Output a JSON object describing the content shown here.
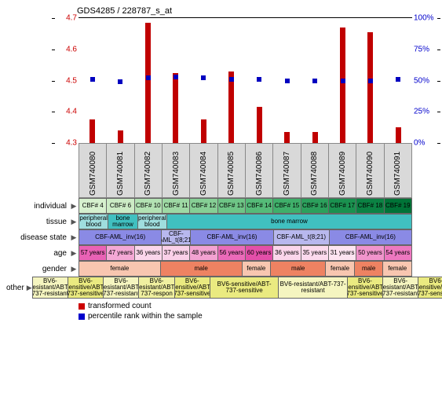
{
  "title": "GDS4285 / 228787_s_at",
  "y_left": {
    "min": 4.3,
    "max": 4.7,
    "ticks": [
      4.3,
      4.4,
      4.5,
      4.6,
      4.7
    ],
    "color": "#c00000"
  },
  "y_right": {
    "min": 0,
    "max": 100,
    "ticks": [
      0,
      25,
      50,
      75,
      100
    ],
    "suffix": "%",
    "color": "#0000c0"
  },
  "samples": [
    "GSM740080",
    "GSM740081",
    "GSM740082",
    "GSM740083",
    "GSM740084",
    "GSM740085",
    "GSM740086",
    "GSM740087",
    "GSM740088",
    "GSM740089",
    "GSM740090",
    "GSM740091"
  ],
  "bars": [
    4.375,
    4.34,
    4.685,
    4.525,
    4.375,
    4.53,
    4.415,
    4.335,
    4.335,
    4.67,
    4.655,
    4.35
  ],
  "points": [
    51,
    49,
    52,
    53,
    52,
    51,
    51,
    50,
    50,
    50,
    50,
    51
  ],
  "bar_color": "#c00000",
  "point_color": "#0000c0",
  "meta_rows": [
    {
      "label": "individual",
      "cells": [
        {
          "t": "CBF# 4",
          "w": 1,
          "c": "#d6f0ce"
        },
        {
          "t": "CBF# 6",
          "w": 1,
          "c": "#ccebc5"
        },
        {
          "t": "CBF# 10",
          "w": 1,
          "c": "#b3e2b3"
        },
        {
          "t": "CBF# 11",
          "w": 1,
          "c": "#9ed9a4"
        },
        {
          "t": "CBF# 12",
          "w": 1,
          "c": "#86cf95"
        },
        {
          "t": "CBF# 13",
          "w": 1,
          "c": "#6ec586"
        },
        {
          "t": "CBF# 14",
          "w": 1,
          "c": "#55bb78"
        },
        {
          "t": "CBF# 15",
          "w": 1,
          "c": "#3faf6a"
        },
        {
          "t": "CBF# 16",
          "w": 1,
          "c": "#2ca05c"
        },
        {
          "t": "CBF# 17",
          "w": 1,
          "c": "#1a914f"
        },
        {
          "t": "CBF# 18",
          "w": 1,
          "c": "#0b8243"
        },
        {
          "t": "CBF# 19",
          "w": 1,
          "c": "#007337"
        }
      ]
    },
    {
      "label": "tissue",
      "cells": [
        {
          "t": "peripheral blood",
          "w": 1,
          "c": "#9fdede"
        },
        {
          "t": "bone marrow",
          "w": 1,
          "c": "#40c0c0"
        },
        {
          "t": "peripheral blood",
          "w": 1,
          "c": "#9fdede"
        },
        {
          "t": "bone marrow",
          "w": 9,
          "c": "#40c0c0"
        }
      ]
    },
    {
      "label": "disease state",
      "cells": [
        {
          "t": "CBF-AML_inv(16)",
          "w": 3,
          "c": "#8a8ae5"
        },
        {
          "t": "CBF-AML_t(8;21)",
          "w": 1,
          "c": "#b8b8ee"
        },
        {
          "t": "CBF-AML_inv(16)",
          "w": 3,
          "c": "#8a8ae5"
        },
        {
          "t": "CBF-AML_t(8;21)",
          "w": 2,
          "c": "#b8b8ee"
        },
        {
          "t": "CBF-AML_inv(16)",
          "w": 3,
          "c": "#8a8ae5"
        }
      ]
    },
    {
      "label": "age",
      "cells": [
        {
          "t": "57 years",
          "w": 1,
          "c": "#e962b5"
        },
        {
          "t": "47 years",
          "w": 1,
          "c": "#f4a8d5"
        },
        {
          "t": "36 years",
          "w": 1,
          "c": "#fbd6eb"
        },
        {
          "t": "37 years",
          "w": 1,
          "c": "#fad0e8"
        },
        {
          "t": "48 years",
          "w": 1,
          "c": "#f3a2d2"
        },
        {
          "t": "56 years",
          "w": 1,
          "c": "#eb6ab9"
        },
        {
          "t": "60 years",
          "w": 1,
          "c": "#e34fa9"
        },
        {
          "t": "36 years",
          "w": 1,
          "c": "#fbd6eb"
        },
        {
          "t": "35 years",
          "w": 1,
          "c": "#fcdaed"
        },
        {
          "t": "31 years",
          "w": 1,
          "c": "#fde4f1"
        },
        {
          "t": "50 years",
          "w": 1,
          "c": "#f194cc"
        },
        {
          "t": "54 years",
          "w": 1,
          "c": "#ed78c0"
        }
      ]
    },
    {
      "label": "gender",
      "cells": [
        {
          "t": "female",
          "w": 3,
          "c": "#f8c6b0"
        },
        {
          "t": "male",
          "w": 3,
          "c": "#ee8262"
        },
        {
          "t": "female",
          "w": 1,
          "c": "#f8c6b0"
        },
        {
          "t": "male",
          "w": 2,
          "c": "#ee8262"
        },
        {
          "t": "female",
          "w": 1,
          "c": "#f8c6b0"
        },
        {
          "t": "male",
          "w": 1,
          "c": "#ee8262"
        },
        {
          "t": "female",
          "w": 1,
          "c": "#f8c6b0"
        }
      ]
    },
    {
      "label": "other",
      "cells": [
        {
          "t": "BV6-resistant/ABT-737-resistant",
          "w": 1,
          "c": "#f5f5c0"
        },
        {
          "t": "BV6-sensitive/ABT-737-sensitive",
          "w": 1,
          "c": "#eaea80"
        },
        {
          "t": "BV6-resistant/ABT-737-resistant",
          "w": 1,
          "c": "#f5f5c0"
        },
        {
          "t": "BV6-resistant/ABT-737-respon",
          "w": 1,
          "c": "#f0f0a0"
        },
        {
          "t": "BV6-sensitive/ABT-737-sensitive",
          "w": 1,
          "c": "#eaea80"
        },
        {
          "t": "BV6-sensitive/ABT-737-sensitive",
          "w": 2,
          "c": "#eaea80"
        },
        {
          "t": "BV6-resistant/ABT-737-resistant",
          "w": 2,
          "c": "#f5f5c0"
        },
        {
          "t": "BV6-sensitive/ABT-737-sensitive",
          "w": 1,
          "c": "#eaea80"
        },
        {
          "t": "BV6-resistant/ABT-737-resistant",
          "w": 1,
          "c": "#f5f5c0"
        },
        {
          "t": "BV6-sensitive/ABT-737-sensitive",
          "w": 1,
          "c": "#eaea80"
        }
      ]
    }
  ],
  "legend": [
    {
      "sw": "bar",
      "t": "transformed count"
    },
    {
      "sw": "sq",
      "t": "percentile rank within the sample"
    }
  ]
}
